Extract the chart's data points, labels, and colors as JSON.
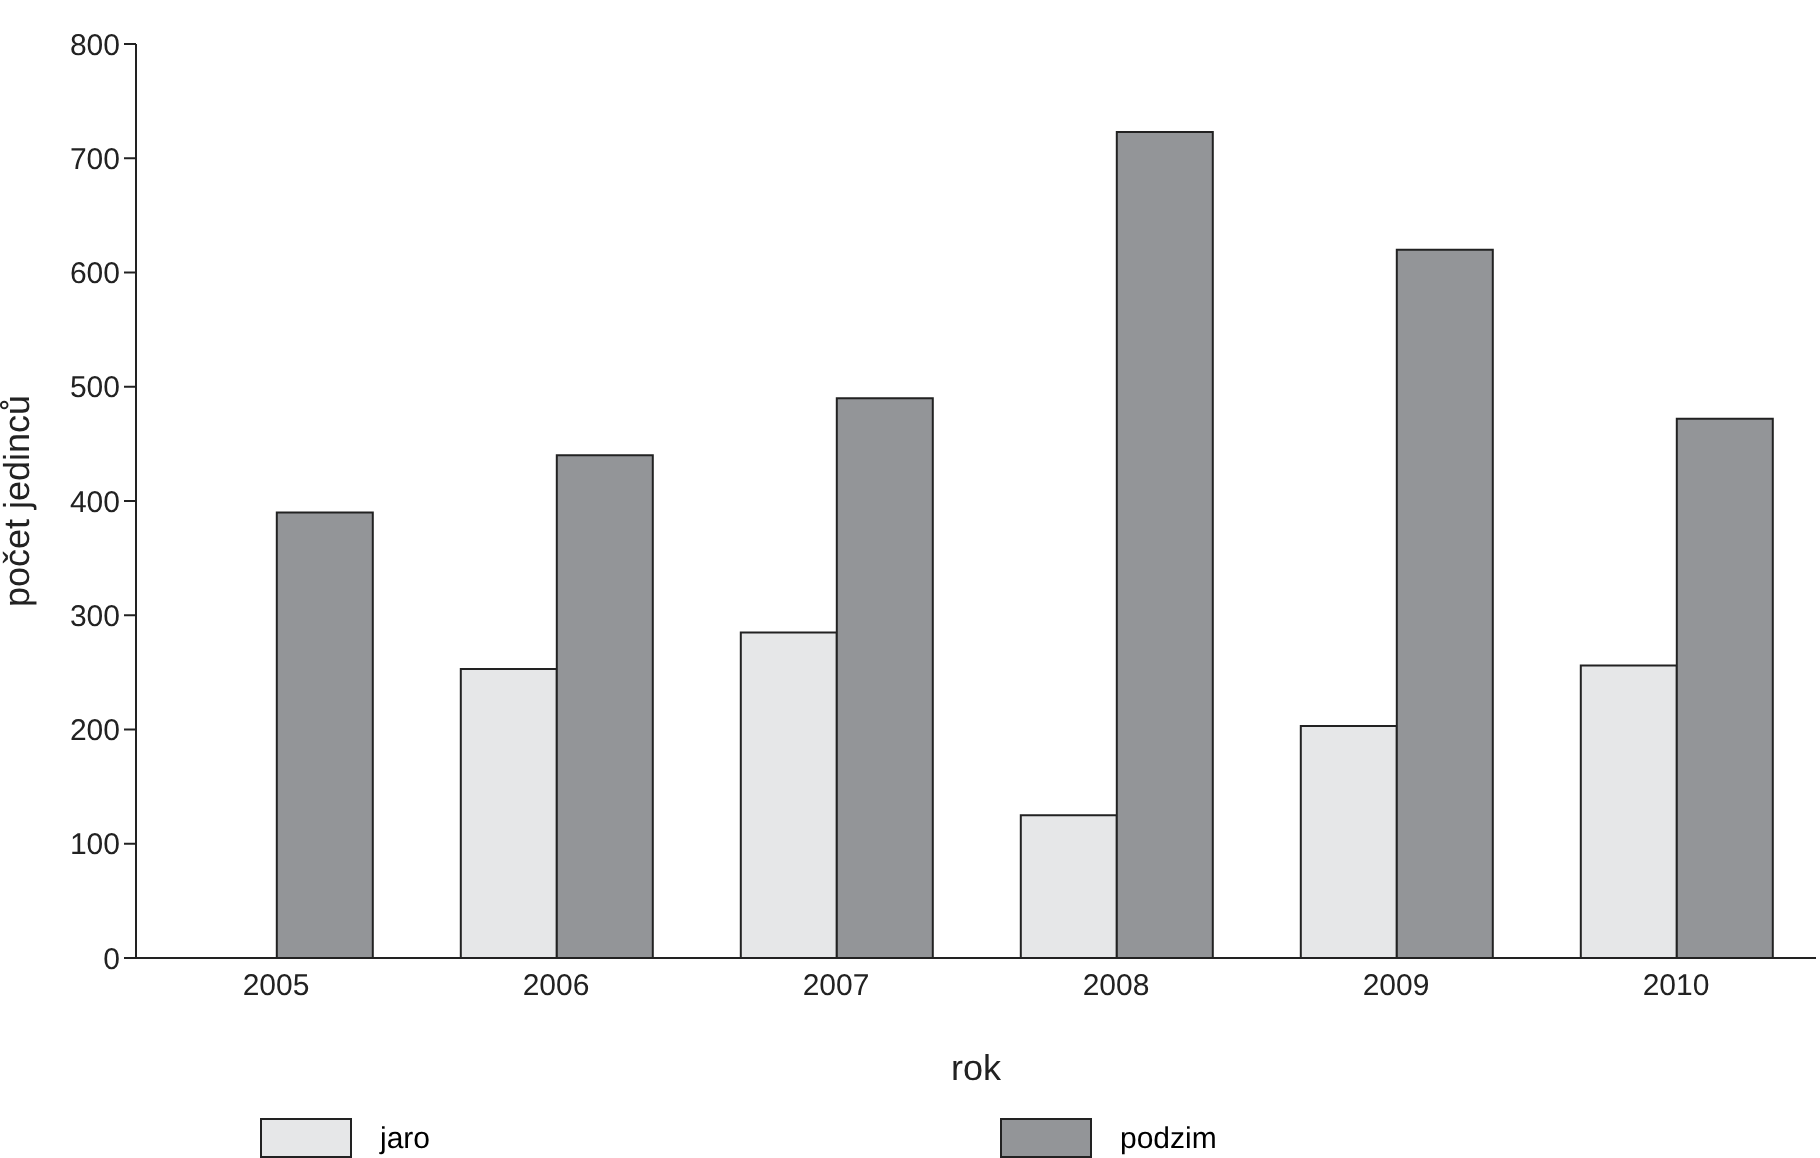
{
  "chart_data": {
    "type": "bar",
    "xlabel": "rok",
    "ylabel": "počet jedinců",
    "categories": [
      "2005",
      "2006",
      "2007",
      "2008",
      "2009",
      "2010"
    ],
    "series": [
      {
        "name": "jaro",
        "color": "#e6e7e8",
        "values": [
          0,
          253,
          285,
          125,
          203,
          256
        ]
      },
      {
        "name": "podzim",
        "color": "#939598",
        "values": [
          390,
          440,
          490,
          723,
          620,
          472
        ]
      }
    ],
    "ylim": [
      0,
      800
    ],
    "yticks": [
      0,
      100,
      200,
      300,
      400,
      500,
      600,
      700,
      800
    ],
    "grid": false,
    "legend": "bottom"
  }
}
